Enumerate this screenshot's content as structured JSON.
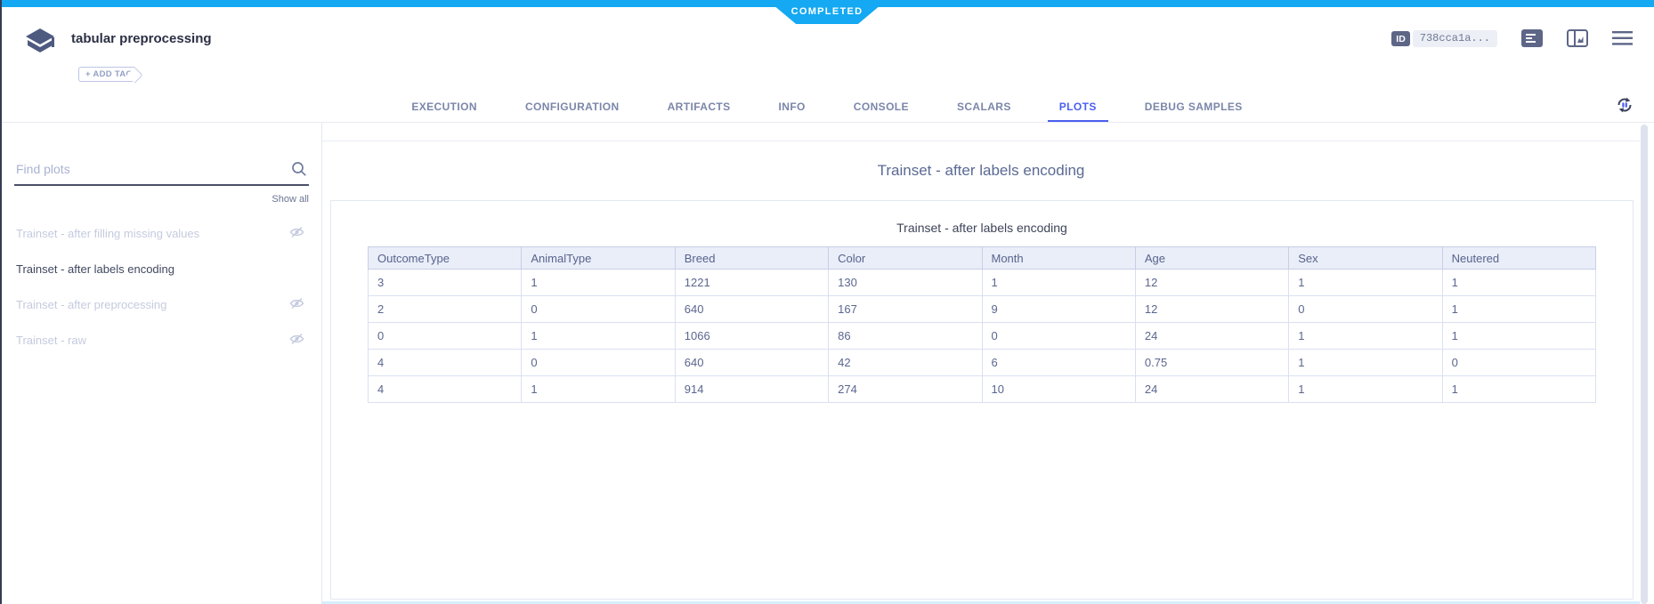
{
  "status_banner": {
    "label": "COMPLETED",
    "color": "#14a9f2"
  },
  "header": {
    "title": "tabular preprocessing",
    "add_tag_label": "+ ADD TAG",
    "id_badge": "ID",
    "id_value": "738cca1a..."
  },
  "tabs": {
    "items": [
      "EXECUTION",
      "CONFIGURATION",
      "ARTIFACTS",
      "INFO",
      "CONSOLE",
      "SCALARS",
      "PLOTS",
      "DEBUG SAMPLES"
    ],
    "active": "PLOTS",
    "accent_color": "#4a5fef"
  },
  "sidebar": {
    "search_placeholder": "Find plots",
    "show_all_label": "Show all",
    "items": [
      {
        "label": "Trainset - after filling missing values",
        "hidden": true,
        "active": false
      },
      {
        "label": "Trainset - after labels encoding",
        "hidden": false,
        "active": true
      },
      {
        "label": "Trainset - after preprocessing",
        "hidden": true,
        "active": false
      },
      {
        "label": "Trainset - raw",
        "hidden": true,
        "active": false
      }
    ]
  },
  "plot": {
    "card_title": "Trainset - after labels encoding",
    "figure_title": "Trainset - after labels encoding"
  },
  "chart_data": {
    "type": "table",
    "title": "Trainset - after labels encoding",
    "columns": [
      "OutcomeType",
      "AnimalType",
      "Breed",
      "Color",
      "Month",
      "Age",
      "Sex",
      "Neutered"
    ],
    "rows": [
      [
        "3",
        "1",
        "1221",
        "130",
        "1",
        "12",
        "1",
        "1"
      ],
      [
        "2",
        "0",
        "640",
        "167",
        "9",
        "12",
        "0",
        "1"
      ],
      [
        "0",
        "1",
        "1066",
        "86",
        "0",
        "24",
        "1",
        "1"
      ],
      [
        "4",
        "0",
        "640",
        "42",
        "6",
        "0.75",
        "1",
        "0"
      ],
      [
        "4",
        "1",
        "914",
        "274",
        "10",
        "24",
        "1",
        "1"
      ]
    ],
    "layout": {
      "header_bg": "#e9eef9",
      "cell_text": "#5b668f",
      "border": "#c7cfe5"
    }
  },
  "icons": {
    "logo": "experiment-cube-icon",
    "top_right": [
      "details-panel-icon",
      "chart-panel-icon",
      "menu-icon"
    ],
    "refresh": "auto-refresh-pause-icon",
    "search": "search-icon",
    "hidden_item": "eye-slash-icon"
  }
}
